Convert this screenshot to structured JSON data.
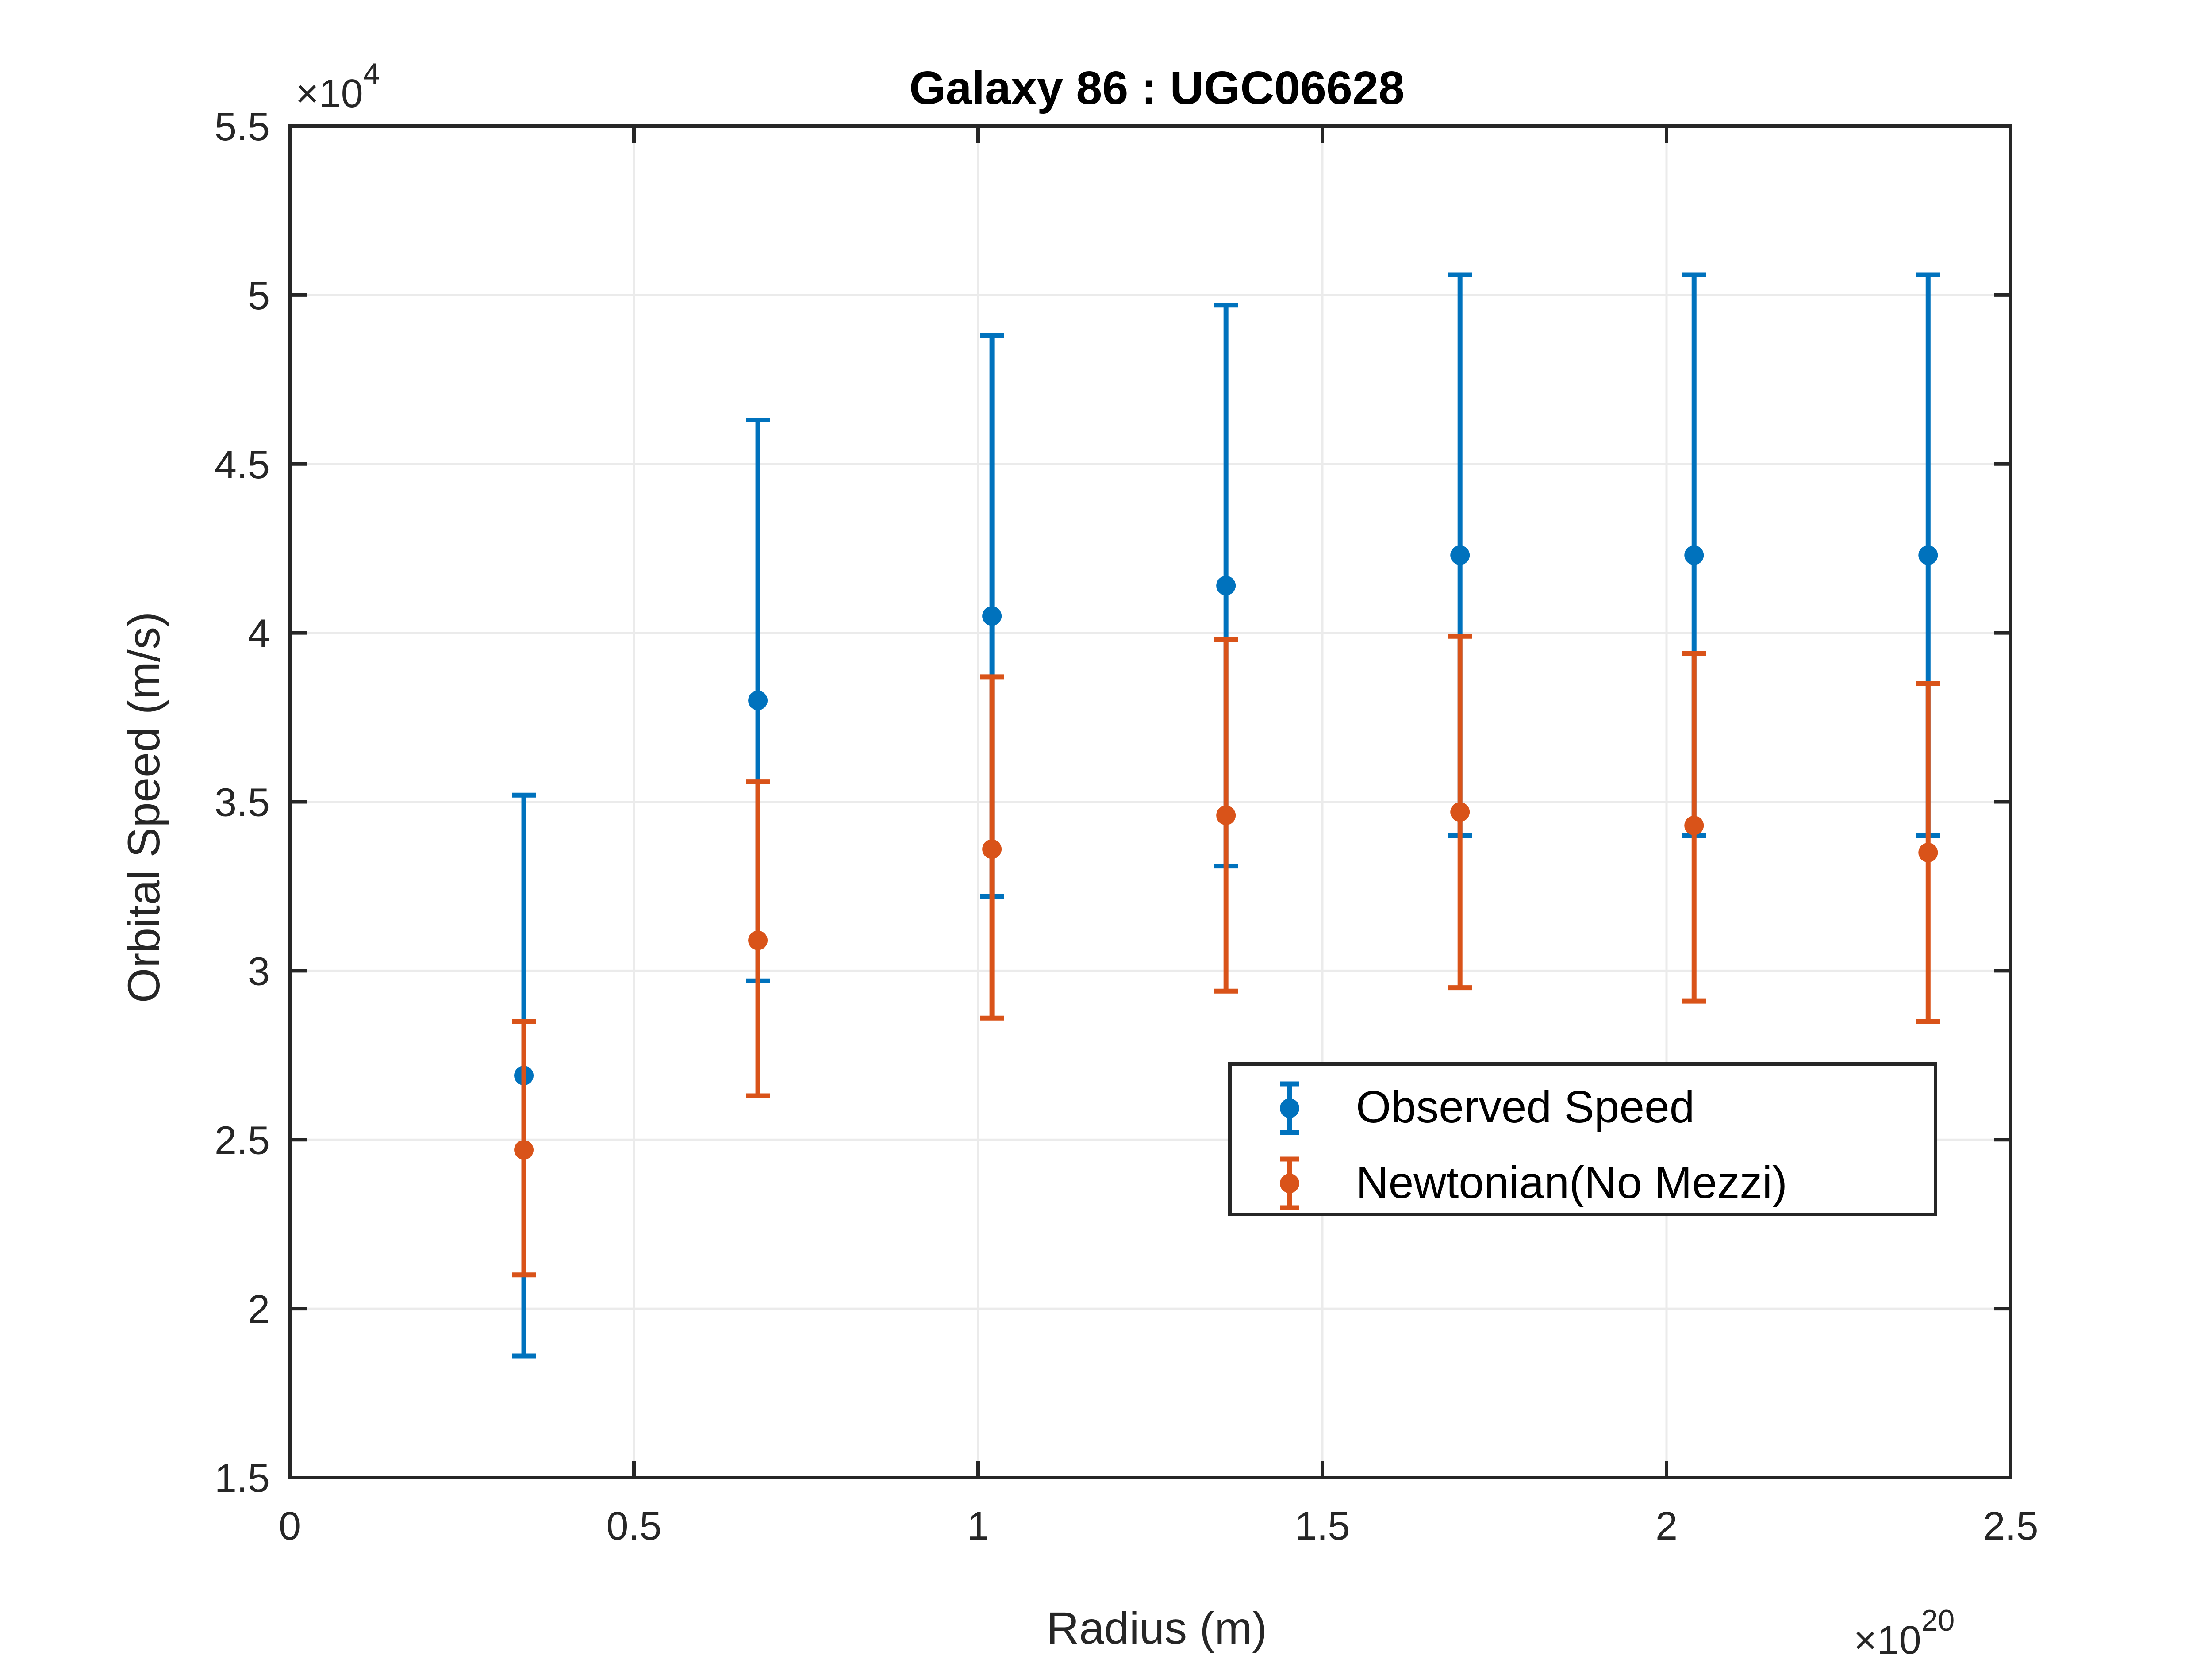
{
  "chart_data": {
    "type": "scatter",
    "title": "Galaxy 86 : UGC06628",
    "xlabel": "Radius (m)",
    "ylabel": "Orbital Speed (m/s)",
    "x_exponent_prefix": "×10",
    "x_exponent_power": "20",
    "y_exponent_prefix": "×10",
    "y_exponent_power": "4",
    "xlim": [
      0,
      2.5
    ],
    "ylim": [
      1.5,
      5.5
    ],
    "xticks": [
      0,
      0.5,
      1,
      1.5,
      2,
      2.5
    ],
    "xtick_labels": [
      "0",
      "0.5",
      "1",
      "1.5",
      "2",
      "2.5"
    ],
    "yticks": [
      1.5,
      2,
      2.5,
      3,
      3.5,
      4,
      4.5,
      5,
      5.5
    ],
    "ytick_labels": [
      "1.5",
      "2",
      "2.5",
      "3",
      "3.5",
      "4",
      "4.5",
      "5",
      "5.5"
    ],
    "grid": true,
    "legend_position": "lower-right",
    "series": [
      {
        "name": "Observed Speed",
        "color": "#0072BD",
        "x": [
          0.34,
          0.68,
          1.02,
          1.36,
          1.7,
          2.04,
          2.38
        ],
        "y": [
          2.69,
          3.8,
          4.05,
          4.14,
          4.23,
          4.23,
          4.23
        ],
        "err_low": [
          1.86,
          2.97,
          3.22,
          3.31,
          3.4,
          3.4,
          3.4
        ],
        "err_high": [
          3.52,
          4.63,
          4.88,
          4.97,
          5.06,
          5.06,
          5.06
        ]
      },
      {
        "name": "Newtonian(No Mezzi)",
        "color": "#D95319",
        "x": [
          0.34,
          0.68,
          1.02,
          1.36,
          1.7,
          2.04,
          2.38
        ],
        "y": [
          2.47,
          3.09,
          3.36,
          3.46,
          3.47,
          3.43,
          3.35
        ],
        "err_low": [
          2.1,
          2.63,
          2.86,
          2.94,
          2.95,
          2.91,
          2.85
        ],
        "err_high": [
          2.85,
          3.56,
          3.87,
          3.98,
          3.99,
          3.94,
          3.85
        ]
      }
    ]
  }
}
